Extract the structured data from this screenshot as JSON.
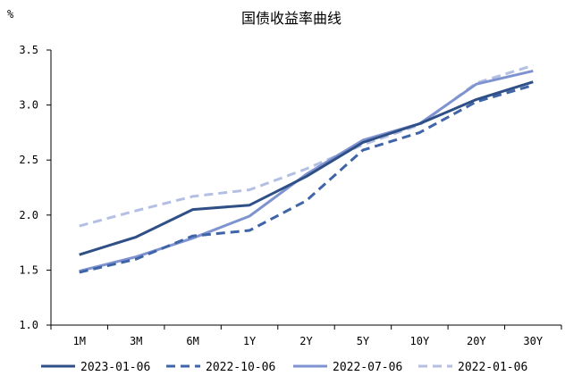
{
  "chart_data": {
    "type": "line",
    "title": "国债收益率曲线",
    "ylabel": "%",
    "xlabel": "",
    "categories": [
      "1M",
      "3M",
      "6M",
      "1Y",
      "2Y",
      "5Y",
      "10Y",
      "20Y",
      "30Y"
    ],
    "ylim": [
      1.0,
      3.5
    ],
    "yticks": [
      "1.0",
      "1.5",
      "2.0",
      "2.5",
      "3.0",
      "3.5"
    ],
    "grid": false,
    "legend_position": "bottom",
    "series": [
      {
        "name": "2023-01-06",
        "values": [
          1.64,
          1.8,
          2.05,
          2.09,
          2.35,
          2.66,
          2.83,
          3.05,
          3.21
        ],
        "color": "#2f4f87",
        "dash": "solid"
      },
      {
        "name": "2022-10-06",
        "values": [
          1.48,
          1.6,
          1.81,
          1.86,
          2.13,
          2.59,
          2.75,
          3.03,
          3.18
        ],
        "color": "#3f64a8",
        "dash": "dashed"
      },
      {
        "name": "2022-07-06",
        "values": [
          1.49,
          1.62,
          1.79,
          1.99,
          2.37,
          2.68,
          2.83,
          3.19,
          3.31
        ],
        "color": "#7f93d0",
        "dash": "solid"
      },
      {
        "name": "2022-01-06",
        "values": [
          1.9,
          2.04,
          2.17,
          2.23,
          2.42,
          2.64,
          2.82,
          3.2,
          3.36
        ],
        "color": "#b3bfe3",
        "dash": "dashed"
      }
    ]
  }
}
